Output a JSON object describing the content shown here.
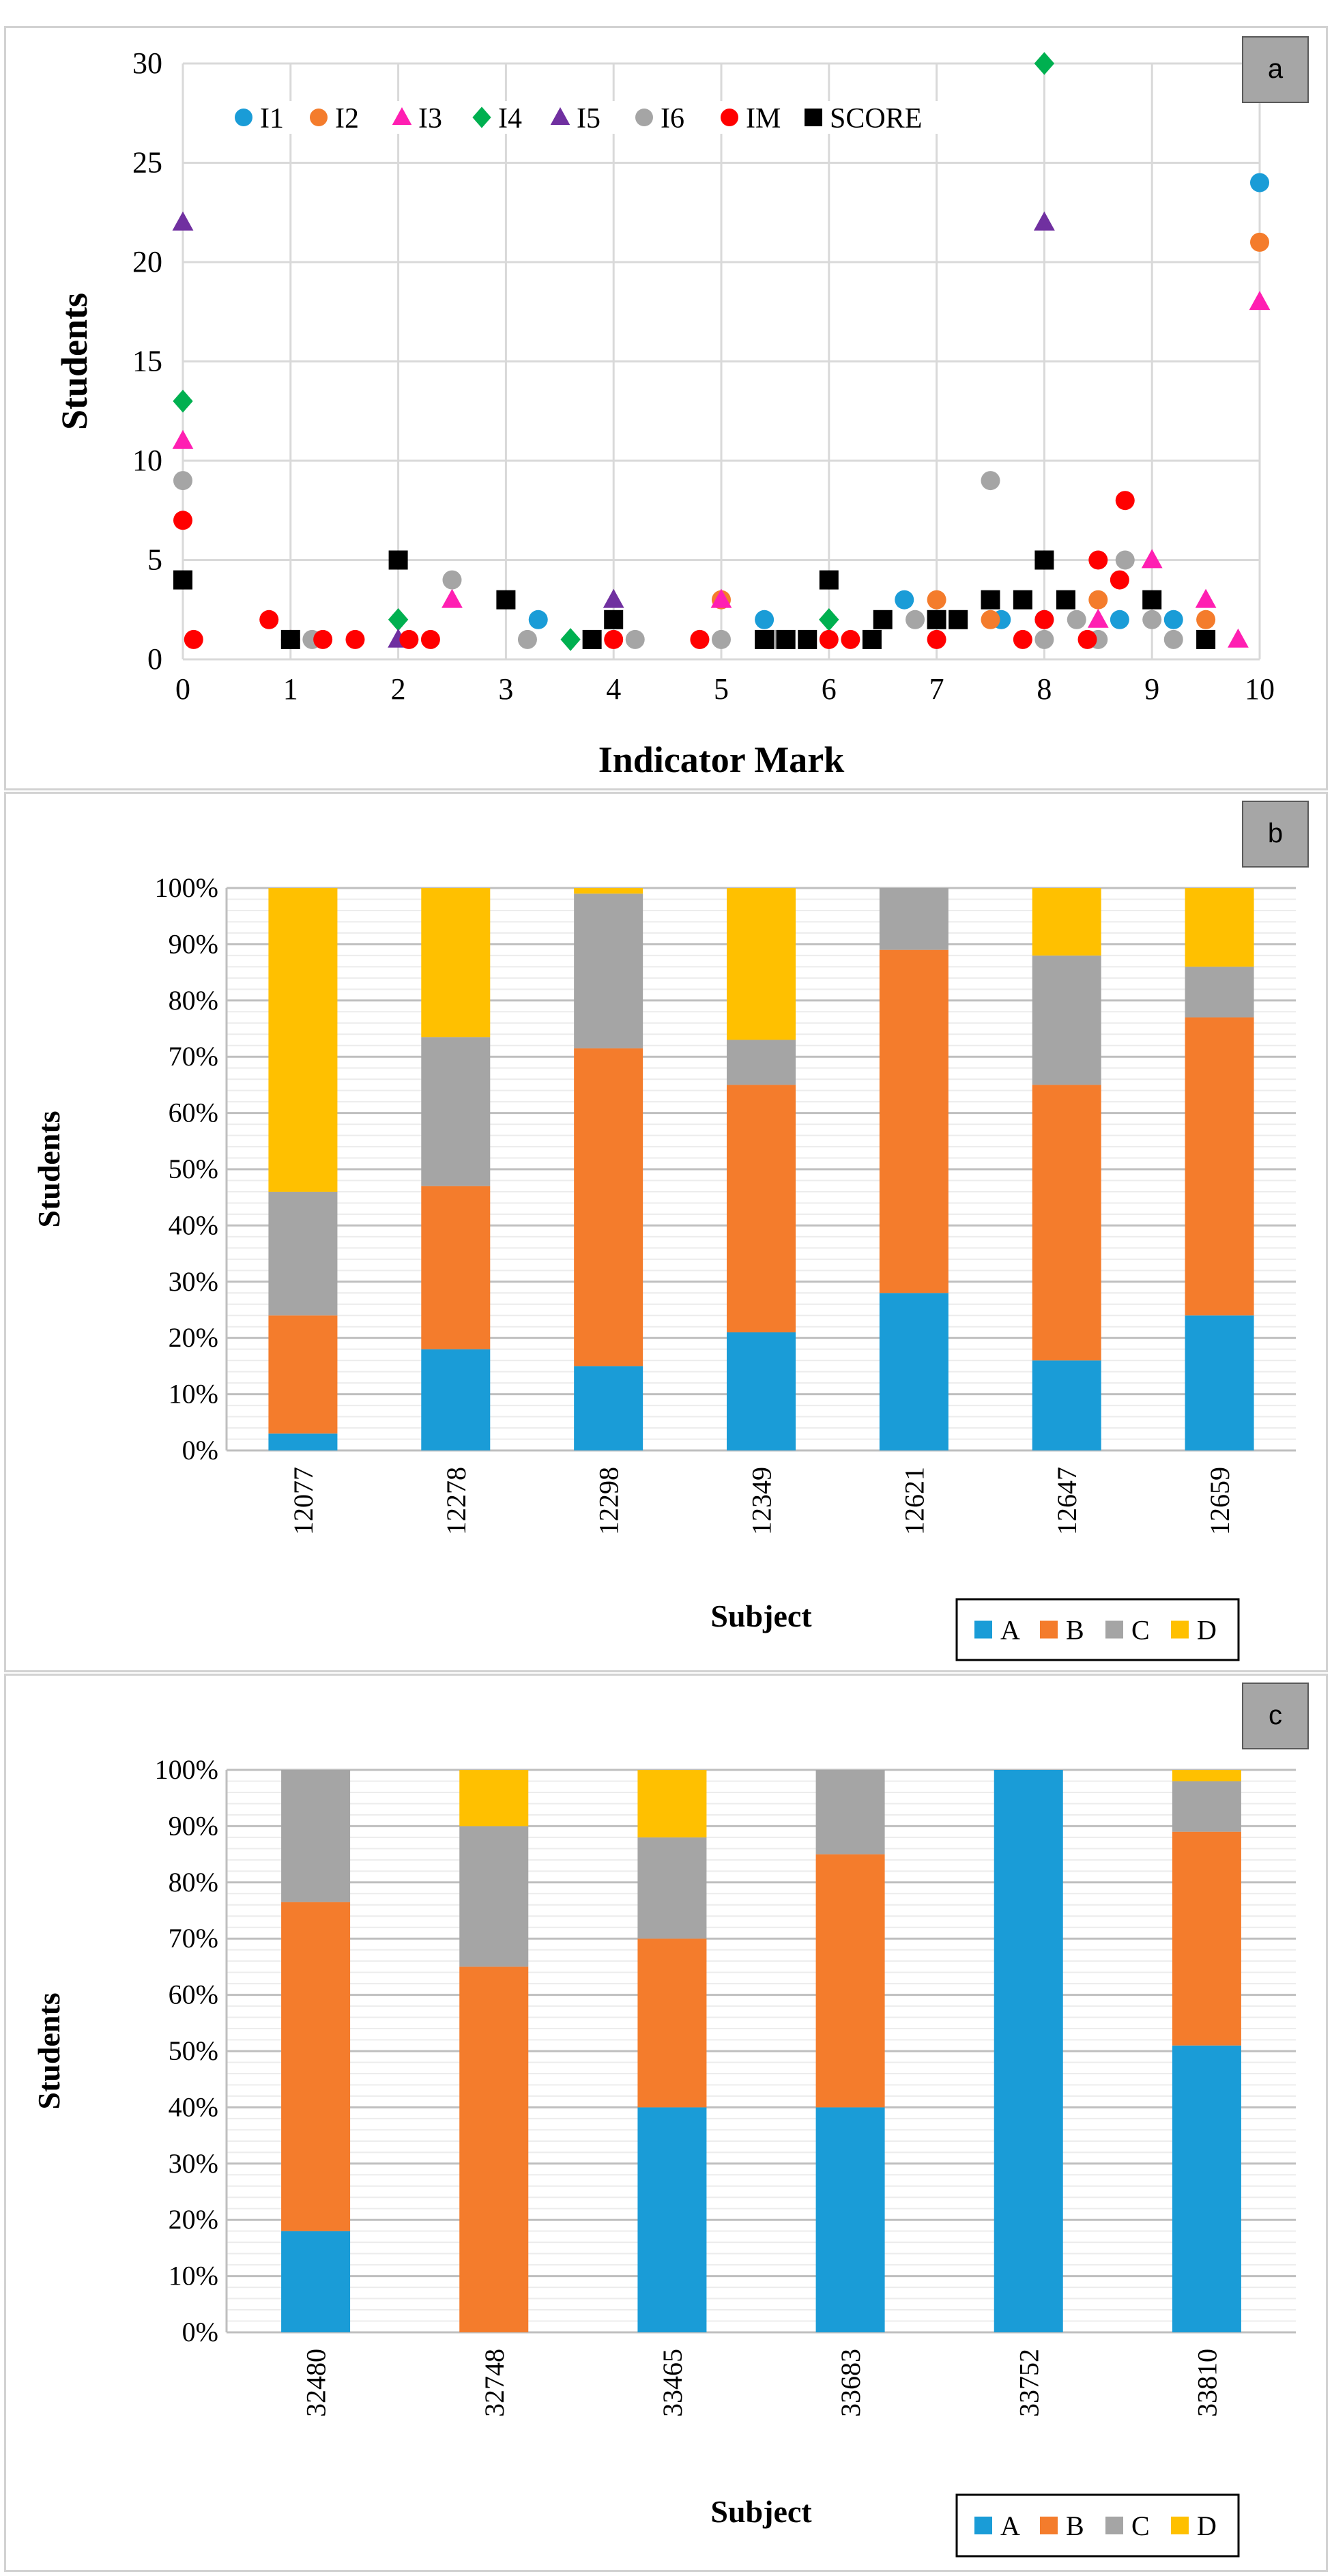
{
  "chart_data": [
    {
      "type": "scatter",
      "panel_label": "a",
      "xlabel": "Indicator Mark",
      "ylabel": "Students",
      "xlim": [
        0,
        10
      ],
      "ylim": [
        0,
        30
      ],
      "xticks": [
        "0",
        "1",
        "2",
        "3",
        "4",
        "5",
        "6",
        "7",
        "8",
        "9",
        "10"
      ],
      "yticks": [
        "0",
        "5",
        "10",
        "15",
        "20",
        "25",
        "30"
      ],
      "grid": true,
      "legend_position": "top",
      "series": [
        {
          "name": "I1",
          "color": "#1a9cd7",
          "marker": "circle",
          "x": [
            3.3,
            5.4,
            6.7,
            7.6,
            8.0,
            8.7,
            9.2,
            10
          ],
          "y": [
            2,
            2,
            3,
            2,
            2,
            2,
            2,
            24
          ]
        },
        {
          "name": "I2",
          "color": "#f47c2c",
          "marker": "circle",
          "x": [
            5,
            7,
            7.5,
            8.5,
            9.5,
            10
          ],
          "y": [
            3,
            3,
            2,
            3,
            2,
            21
          ]
        },
        {
          "name": "I3",
          "color": "#ff1fb2",
          "marker": "triangle",
          "x": [
            0,
            2.5,
            5,
            8.5,
            9,
            9.5,
            9.8,
            10
          ],
          "y": [
            11,
            3,
            3,
            2,
            5,
            3,
            1,
            18
          ]
        },
        {
          "name": "I4",
          "color": "#00b050",
          "marker": "diamond",
          "x": [
            0,
            2,
            3.6,
            6,
            8
          ],
          "y": [
            13,
            2,
            1,
            2,
            30
          ]
        },
        {
          "name": "I5",
          "color": "#7030a0",
          "marker": "triangle",
          "x": [
            0,
            2,
            4,
            8
          ],
          "y": [
            22,
            1,
            3,
            22
          ]
        },
        {
          "name": "I6",
          "color": "#a5a5a5",
          "marker": "circle",
          "x": [
            0,
            1.2,
            2.5,
            3.2,
            4.2,
            4.8,
            5,
            5.5,
            6.8,
            7.5,
            8,
            8.3,
            8.5,
            8.75,
            9,
            9.2
          ],
          "y": [
            9,
            1,
            4,
            1,
            1,
            1,
            1,
            1,
            2,
            9,
            1,
            2,
            1,
            5,
            2,
            1
          ],
          "y_note": "approx"
        },
        {
          "name": "IM",
          "color": "#ff0000",
          "marker": "circle",
          "x": [
            0,
            0.1,
            0.8,
            1,
            1.3,
            1.6,
            2.1,
            2.3,
            4,
            4.8,
            6,
            6.2,
            7,
            7.8,
            8,
            8.4,
            8.5,
            8.7,
            8.75
          ],
          "y": [
            7,
            1,
            2,
            1,
            1,
            1,
            1,
            1,
            1,
            1,
            1,
            1,
            1,
            1,
            2,
            1,
            5,
            4,
            8
          ]
        },
        {
          "name": "SCORE",
          "color": "#000000",
          "marker": "square",
          "x": [
            0,
            1,
            2,
            3,
            3.8,
            4,
            5.4,
            5.6,
            5.8,
            6,
            6.4,
            6.5,
            7,
            7.2,
            7.5,
            7.8,
            8,
            8.2,
            9,
            9.5
          ],
          "y": [
            4,
            1,
            5,
            3,
            1,
            2,
            1,
            1,
            1,
            4,
            1,
            2,
            2,
            2,
            3,
            3,
            5,
            3,
            3,
            1
          ]
        }
      ]
    },
    {
      "type": "bar",
      "stacked": true,
      "panel_label": "b",
      "xlabel": "Subject",
      "ylabel": "Students",
      "ylim": [
        0,
        100
      ],
      "yticks": [
        "0%",
        "10%",
        "20%",
        "30%",
        "40%",
        "50%",
        "60%",
        "70%",
        "80%",
        "90%",
        "100%"
      ],
      "categories": [
        "12077",
        "12278",
        "12298",
        "12349",
        "12621",
        "12647",
        "12659"
      ],
      "legend_position": "bottom-right",
      "series": [
        {
          "name": "A",
          "color": "#1a9cd7",
          "values": [
            3,
            18,
            15,
            21,
            28,
            16,
            24
          ]
        },
        {
          "name": "B",
          "color": "#f47c2c",
          "values": [
            21,
            29,
            56.5,
            44,
            61,
            49,
            53
          ]
        },
        {
          "name": "C",
          "color": "#a5a5a5",
          "values": [
            22,
            26.5,
            27.5,
            8,
            11,
            23,
            9
          ]
        },
        {
          "name": "D",
          "color": "#ffc000",
          "values": [
            54,
            26.5,
            1,
            27,
            0,
            12,
            14
          ]
        }
      ]
    },
    {
      "type": "bar",
      "stacked": true,
      "panel_label": "c",
      "xlabel": "Subject",
      "ylabel": "Students",
      "ylim": [
        0,
        100
      ],
      "yticks": [
        "0%",
        "10%",
        "20%",
        "30%",
        "40%",
        "50%",
        "60%",
        "70%",
        "80%",
        "90%",
        "100%"
      ],
      "categories": [
        "32480",
        "32748",
        "33465",
        "33683",
        "33752",
        "33810"
      ],
      "legend_position": "bottom-right",
      "series": [
        {
          "name": "A",
          "color": "#1a9cd7",
          "values": [
            18,
            0,
            40,
            40,
            100,
            51
          ]
        },
        {
          "name": "B",
          "color": "#f47c2c",
          "values": [
            58.5,
            65,
            30,
            45,
            0,
            38
          ]
        },
        {
          "name": "C",
          "color": "#a5a5a5",
          "values": [
            23.5,
            25,
            18,
            15,
            0,
            9
          ]
        },
        {
          "name": "D",
          "color": "#ffc000",
          "values": [
            0,
            10,
            12,
            0,
            0,
            2
          ]
        }
      ]
    }
  ]
}
